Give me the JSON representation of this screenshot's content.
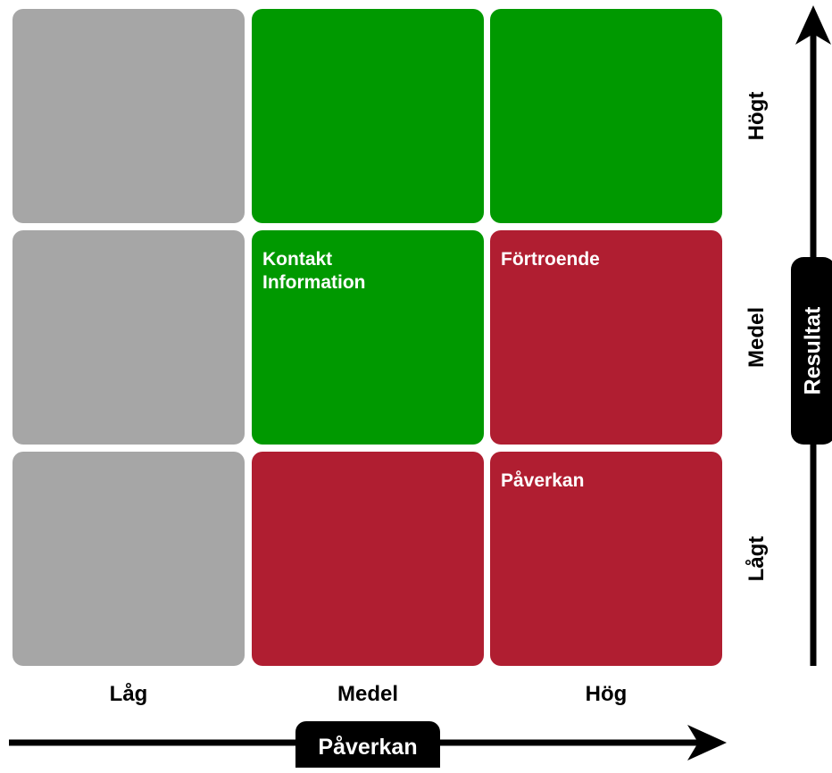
{
  "grid": {
    "cells": [
      {
        "row": "Högt",
        "column": "Låg",
        "color": "#a6a6a6",
        "label": ""
      },
      {
        "row": "Högt",
        "column": "Medel",
        "color": "#009900",
        "label": ""
      },
      {
        "row": "Högt",
        "column": "Hög",
        "color": "#009900",
        "label": ""
      },
      {
        "row": "Medel",
        "column": "Låg",
        "color": "#a6a6a6",
        "label": ""
      },
      {
        "row": "Medel",
        "column": "Medel",
        "color": "#009900",
        "label": "Kontakt\nInformation"
      },
      {
        "row": "Medel",
        "column": "Hög",
        "color": "#b01e31",
        "label": "Förtroende"
      },
      {
        "row": "Lågt",
        "column": "Låg",
        "color": "#a6a6a6",
        "label": ""
      },
      {
        "row": "Lågt",
        "column": "Medel",
        "color": "#b01e31",
        "label": ""
      },
      {
        "row": "Lågt",
        "column": "Hög",
        "color": "#b01e31",
        "label": "Påverkan"
      }
    ]
  },
  "x_axis": {
    "title": "Påverkan",
    "levels": [
      "Låg",
      "Medel",
      "Hög"
    ]
  },
  "y_axis": {
    "title": "Resultat",
    "levels": [
      "Högt",
      "Medel",
      "Lågt"
    ]
  },
  "colors": {
    "gray": "#a6a6a6",
    "green": "#009900",
    "red": "#b01e31",
    "axis": "#000000"
  }
}
